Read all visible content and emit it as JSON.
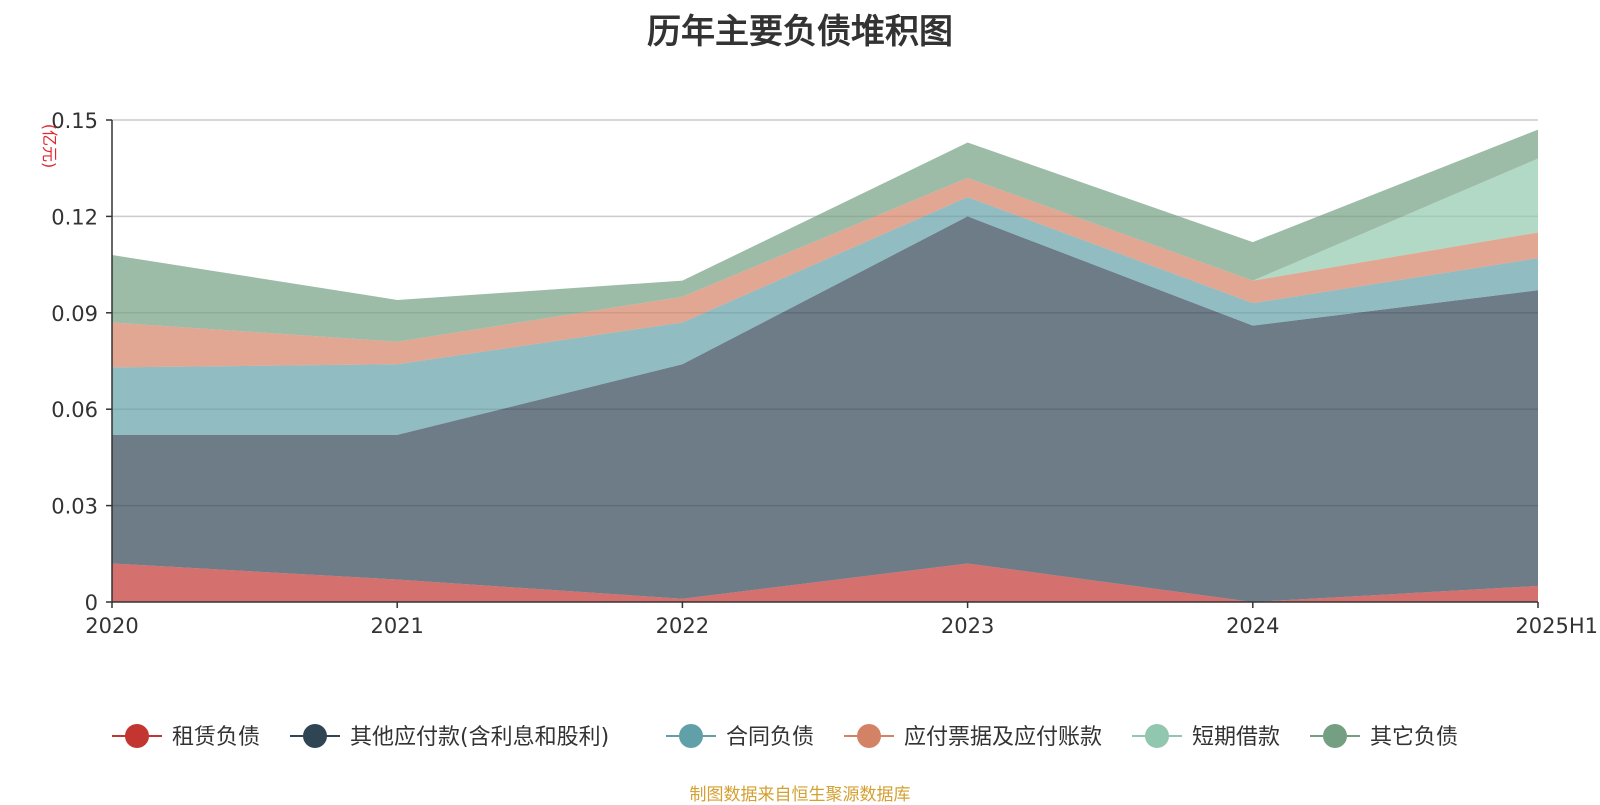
{
  "chart_data": {
    "type": "area",
    "stacked": true,
    "title": "历年主要负债堆积图",
    "unit_label": "(亿元)",
    "categories": [
      "2020",
      "2021",
      "2022",
      "2023",
      "2024",
      "2025H1"
    ],
    "ylim": [
      0,
      0.15
    ],
    "yticks": [
      0,
      0.03,
      0.06,
      0.09,
      0.12,
      0.15
    ],
    "ytick_labels": [
      "0",
      "0.03",
      "0.06",
      "0.09",
      "0.12",
      "0.15"
    ],
    "grid": true,
    "legend_position": "bottom",
    "series": [
      {
        "name": "租赁负债",
        "color": "#c23531",
        "values": [
          0.012,
          0.007,
          0.001,
          0.012,
          0.0,
          0.005
        ]
      },
      {
        "name": "其他应付款(含利息和股利)",
        "color": "#2f4554",
        "values": [
          0.04,
          0.045,
          0.073,
          0.108,
          0.086,
          0.092
        ]
      },
      {
        "name": "合同负债",
        "color": "#61a0a8",
        "values": [
          0.021,
          0.022,
          0.013,
          0.006,
          0.007,
          0.01
        ]
      },
      {
        "name": "应付票据及应付账款",
        "color": "#d48265",
        "values": [
          0.014,
          0.007,
          0.008,
          0.006,
          0.007,
          0.008
        ]
      },
      {
        "name": "短期借款",
        "color": "#91c7ae",
        "values": [
          0.0,
          0.0,
          0.0,
          0.0,
          0.0,
          0.023
        ]
      },
      {
        "name": "其它负债",
        "color": "#749f83",
        "values": [
          0.021,
          0.013,
          0.005,
          0.011,
          0.012,
          0.009
        ]
      }
    ],
    "source": "制图数据来自恒生聚源数据库"
  }
}
